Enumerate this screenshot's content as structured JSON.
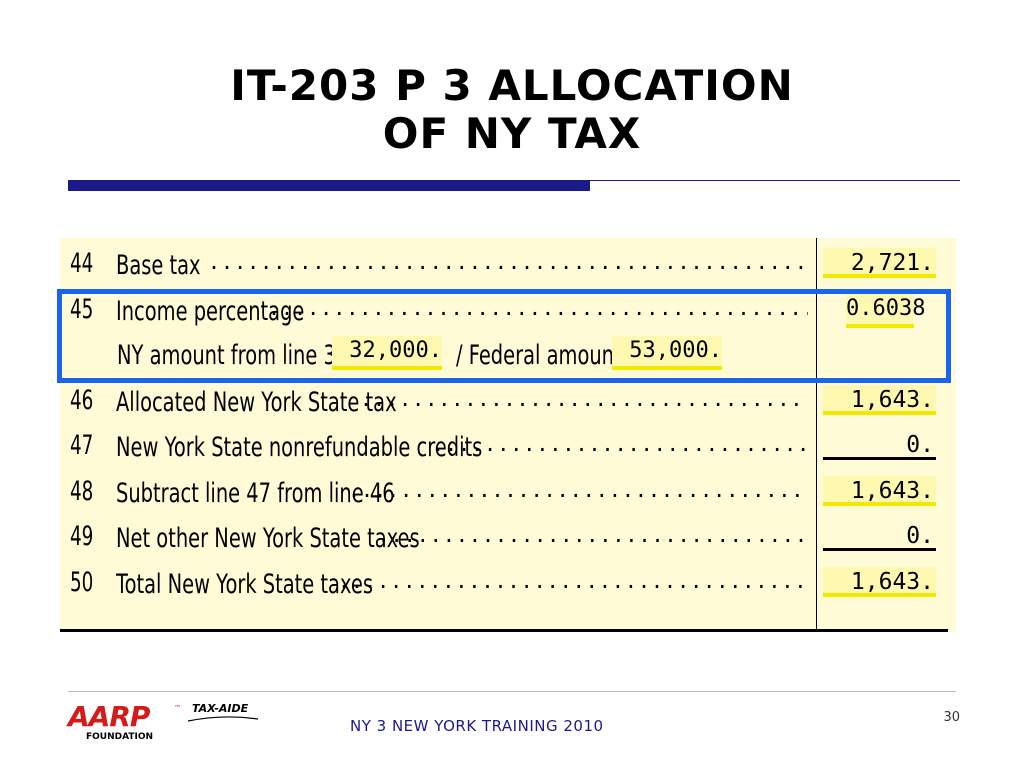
{
  "slide": {
    "title_line1": "IT-203 P 3 ALLOCATION",
    "title_line2": "OF NY TAX"
  },
  "form": {
    "lines": [
      {
        "num": "44",
        "label": "Base tax",
        "dots": "......................................................",
        "amount": "2,721."
      },
      {
        "num": "45",
        "label": "Income percentage",
        "dots": ".............................................",
        "amount": "0.6038"
      },
      {
        "num": "46",
        "label": "Allocated New York State tax",
        "dots": "........................................",
        "amount": "1,643."
      },
      {
        "num": "47",
        "label": "New York State nonrefundable credits",
        "dots": "...............................",
        "amount": "0."
      },
      {
        "num": "48",
        "label": "Subtract line 47 from line 46",
        "dots": ".......................................",
        "amount": "1,643."
      },
      {
        "num": "49",
        "label": "Net other New York State taxes",
        "dots": ".................................",
        "amount": "0."
      },
      {
        "num": "50",
        "label": "Total New York State taxes",
        "dots": ".............................................",
        "amount": "1,643."
      }
    ],
    "sub": {
      "ny_label": "NY amount from line 31",
      "ny_amount": "32,000.",
      "fed_label": "/ Federal amount",
      "fed_amount": "53,000."
    }
  },
  "footer": {
    "logo_text": "AARP",
    "logo_tm": "™",
    "logo_sub": "FOUNDATION",
    "logo_program": "TAX-AIDE",
    "text": "NY 3 NEW YORK TRAINING 2010",
    "page_number": "30"
  },
  "colors": {
    "accent_blue": "#1a64f0",
    "title_bar": "#1a1a8c",
    "form_bg": "#fffbd6",
    "field_underline": "#f5e800",
    "brand_red": "#d41a1a"
  }
}
